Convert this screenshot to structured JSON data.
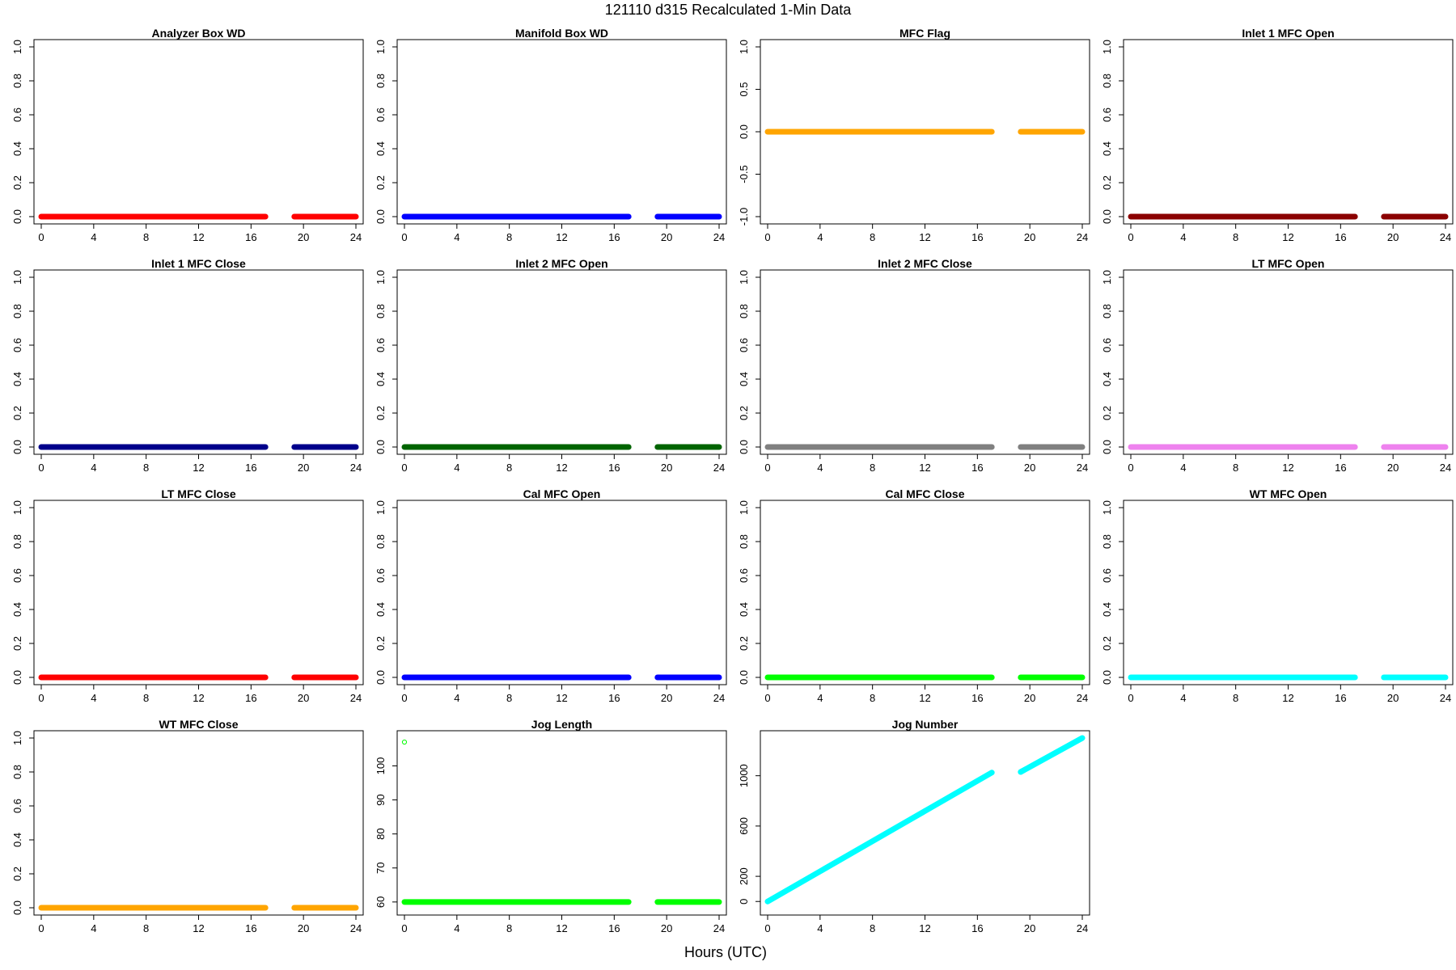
{
  "figure": {
    "title": "121110   d315   Recalculated 1-Min Data",
    "xlabel": "Hours (UTC)"
  },
  "chart_data": [
    {
      "type": "line",
      "title": "Analyzer Box WD",
      "color": "#FF0000",
      "xlim": [
        0,
        24
      ],
      "ylim": [
        0,
        1
      ],
      "xticks": [
        0,
        4,
        8,
        12,
        16,
        20,
        24
      ],
      "yticks": [
        0,
        0.2,
        0.4,
        0.6,
        0.8,
        1
      ],
      "ytick_labels": [
        "0.0",
        "0.2",
        "0.4",
        "0.6",
        "0.8",
        "1.0"
      ],
      "segments": [
        {
          "x": [
            0,
            17.1
          ],
          "y": [
            0,
            0
          ]
        },
        {
          "x": [
            19.3,
            24
          ],
          "y": [
            0,
            0
          ]
        }
      ]
    },
    {
      "type": "line",
      "title": "Manifold Box WD",
      "color": "#0000FF",
      "xlim": [
        0,
        24
      ],
      "ylim": [
        0,
        1
      ],
      "xticks": [
        0,
        4,
        8,
        12,
        16,
        20,
        24
      ],
      "yticks": [
        0,
        0.2,
        0.4,
        0.6,
        0.8,
        1
      ],
      "ytick_labels": [
        "0.0",
        "0.2",
        "0.4",
        "0.6",
        "0.8",
        "1.0"
      ],
      "segments": [
        {
          "x": [
            0,
            17.1
          ],
          "y": [
            0,
            0
          ]
        },
        {
          "x": [
            19.3,
            24
          ],
          "y": [
            0,
            0
          ]
        }
      ]
    },
    {
      "type": "line",
      "title": "MFC Flag",
      "color": "#FFA500",
      "xlim": [
        0,
        24
      ],
      "ylim": [
        -1,
        1
      ],
      "xticks": [
        0,
        4,
        8,
        12,
        16,
        20,
        24
      ],
      "yticks": [
        -1,
        -0.5,
        0,
        0.5,
        1
      ],
      "ytick_labels": [
        "-1.0",
        "-0.5",
        "0.0",
        "0.5",
        "1.0"
      ],
      "segments": [
        {
          "x": [
            0,
            17.1
          ],
          "y": [
            0,
            0
          ]
        },
        {
          "x": [
            19.3,
            24
          ],
          "y": [
            0,
            0
          ]
        }
      ]
    },
    {
      "type": "line",
      "title": "Inlet 1 MFC Open",
      "color": "#8B0000",
      "xlim": [
        0,
        24
      ],
      "ylim": [
        0,
        1
      ],
      "xticks": [
        0,
        4,
        8,
        12,
        16,
        20,
        24
      ],
      "yticks": [
        0,
        0.2,
        0.4,
        0.6,
        0.8,
        1
      ],
      "ytick_labels": [
        "0.0",
        "0.2",
        "0.4",
        "0.6",
        "0.8",
        "1.0"
      ],
      "segments": [
        {
          "x": [
            0,
            17.1
          ],
          "y": [
            0,
            0
          ]
        },
        {
          "x": [
            19.3,
            24
          ],
          "y": [
            0,
            0
          ]
        }
      ]
    },
    {
      "type": "line",
      "title": "Inlet 1 MFC Close",
      "color": "#00008B",
      "xlim": [
        0,
        24
      ],
      "ylim": [
        0,
        1
      ],
      "xticks": [
        0,
        4,
        8,
        12,
        16,
        20,
        24
      ],
      "yticks": [
        0,
        0.2,
        0.4,
        0.6,
        0.8,
        1
      ],
      "ytick_labels": [
        "0.0",
        "0.2",
        "0.4",
        "0.6",
        "0.8",
        "1.0"
      ],
      "segments": [
        {
          "x": [
            0,
            17.1
          ],
          "y": [
            0,
            0
          ]
        },
        {
          "x": [
            19.3,
            24
          ],
          "y": [
            0,
            0
          ]
        }
      ]
    },
    {
      "type": "line",
      "title": "Inlet 2 MFC Open",
      "color": "#006400",
      "xlim": [
        0,
        24
      ],
      "ylim": [
        0,
        1
      ],
      "xticks": [
        0,
        4,
        8,
        12,
        16,
        20,
        24
      ],
      "yticks": [
        0,
        0.2,
        0.4,
        0.6,
        0.8,
        1
      ],
      "ytick_labels": [
        "0.0",
        "0.2",
        "0.4",
        "0.6",
        "0.8",
        "1.0"
      ],
      "segments": [
        {
          "x": [
            0,
            17.1
          ],
          "y": [
            0,
            0
          ]
        },
        {
          "x": [
            19.3,
            24
          ],
          "y": [
            0,
            0
          ]
        }
      ]
    },
    {
      "type": "line",
      "title": "Inlet 2 MFC Close",
      "color": "#808080",
      "xlim": [
        0,
        24
      ],
      "ylim": [
        0,
        1
      ],
      "xticks": [
        0,
        4,
        8,
        12,
        16,
        20,
        24
      ],
      "yticks": [
        0,
        0.2,
        0.4,
        0.6,
        0.8,
        1
      ],
      "ytick_labels": [
        "0.0",
        "0.2",
        "0.4",
        "0.6",
        "0.8",
        "1.0"
      ],
      "segments": [
        {
          "x": [
            0,
            17.1
          ],
          "y": [
            0,
            0
          ]
        },
        {
          "x": [
            19.3,
            24
          ],
          "y": [
            0,
            0
          ]
        }
      ]
    },
    {
      "type": "line",
      "title": "LT MFC Open",
      "color": "#EE82EE",
      "xlim": [
        0,
        24
      ],
      "ylim": [
        0,
        1
      ],
      "xticks": [
        0,
        4,
        8,
        12,
        16,
        20,
        24
      ],
      "yticks": [
        0,
        0.2,
        0.4,
        0.6,
        0.8,
        1
      ],
      "ytick_labels": [
        "0.0",
        "0.2",
        "0.4",
        "0.6",
        "0.8",
        "1.0"
      ],
      "segments": [
        {
          "x": [
            0,
            17.1
          ],
          "y": [
            0,
            0
          ]
        },
        {
          "x": [
            19.3,
            24
          ],
          "y": [
            0,
            0
          ]
        }
      ]
    },
    {
      "type": "line",
      "title": "LT MFC Close",
      "color": "#FF0000",
      "xlim": [
        0,
        24
      ],
      "ylim": [
        0,
        1
      ],
      "xticks": [
        0,
        4,
        8,
        12,
        16,
        20,
        24
      ],
      "yticks": [
        0,
        0.2,
        0.4,
        0.6,
        0.8,
        1
      ],
      "ytick_labels": [
        "0.0",
        "0.2",
        "0.4",
        "0.6",
        "0.8",
        "1.0"
      ],
      "segments": [
        {
          "x": [
            0,
            17.1
          ],
          "y": [
            0,
            0
          ]
        },
        {
          "x": [
            19.3,
            24
          ],
          "y": [
            0,
            0
          ]
        }
      ]
    },
    {
      "type": "line",
      "title": "Cal MFC Open",
      "color": "#0000FF",
      "xlim": [
        0,
        24
      ],
      "ylim": [
        0,
        1
      ],
      "xticks": [
        0,
        4,
        8,
        12,
        16,
        20,
        24
      ],
      "yticks": [
        0,
        0.2,
        0.4,
        0.6,
        0.8,
        1
      ],
      "ytick_labels": [
        "0.0",
        "0.2",
        "0.4",
        "0.6",
        "0.8",
        "1.0"
      ],
      "segments": [
        {
          "x": [
            0,
            17.1
          ],
          "y": [
            0,
            0
          ]
        },
        {
          "x": [
            19.3,
            24
          ],
          "y": [
            0,
            0
          ]
        }
      ]
    },
    {
      "type": "line",
      "title": "Cal MFC Close",
      "color": "#00FF00",
      "xlim": [
        0,
        24
      ],
      "ylim": [
        0,
        1
      ],
      "xticks": [
        0,
        4,
        8,
        12,
        16,
        20,
        24
      ],
      "yticks": [
        0,
        0.2,
        0.4,
        0.6,
        0.8,
        1
      ],
      "ytick_labels": [
        "0.0",
        "0.2",
        "0.4",
        "0.6",
        "0.8",
        "1.0"
      ],
      "segments": [
        {
          "x": [
            0,
            17.1
          ],
          "y": [
            0,
            0
          ]
        },
        {
          "x": [
            19.3,
            24
          ],
          "y": [
            0,
            0
          ]
        }
      ]
    },
    {
      "type": "line",
      "title": "WT MFC Open",
      "color": "#00FFFF",
      "xlim": [
        0,
        24
      ],
      "ylim": [
        0,
        1
      ],
      "xticks": [
        0,
        4,
        8,
        12,
        16,
        20,
        24
      ],
      "yticks": [
        0,
        0.2,
        0.4,
        0.6,
        0.8,
        1
      ],
      "ytick_labels": [
        "0.0",
        "0.2",
        "0.4",
        "0.6",
        "0.8",
        "1.0"
      ],
      "segments": [
        {
          "x": [
            0,
            17.1
          ],
          "y": [
            0,
            0
          ]
        },
        {
          "x": [
            19.3,
            24
          ],
          "y": [
            0,
            0
          ]
        }
      ]
    },
    {
      "type": "line",
      "title": "WT MFC Close",
      "color": "#FFA500",
      "xlim": [
        0,
        24
      ],
      "ylim": [
        0,
        1
      ],
      "xticks": [
        0,
        4,
        8,
        12,
        16,
        20,
        24
      ],
      "yticks": [
        0,
        0.2,
        0.4,
        0.6,
        0.8,
        1
      ],
      "ytick_labels": [
        "0.0",
        "0.2",
        "0.4",
        "0.6",
        "0.8",
        "1.0"
      ],
      "segments": [
        {
          "x": [
            0,
            17.1
          ],
          "y": [
            0,
            0
          ]
        },
        {
          "x": [
            19.3,
            24
          ],
          "y": [
            0,
            0
          ]
        }
      ]
    },
    {
      "type": "line",
      "title": "Jog Length",
      "color": "#00FF00",
      "xlim": [
        0,
        24
      ],
      "ylim": [
        58.3,
        108.2
      ],
      "xticks": [
        0,
        4,
        8,
        12,
        16,
        20,
        24
      ],
      "yticks": [
        60,
        70,
        80,
        90,
        100
      ],
      "ytick_labels": [
        "60",
        "70",
        "80",
        "90",
        "100"
      ],
      "segments": [
        {
          "x": [
            0,
            17.1
          ],
          "y": [
            60,
            60
          ]
        },
        {
          "x": [
            19.3,
            24
          ],
          "y": [
            60,
            60
          ]
        }
      ],
      "points": [
        {
          "x": 0,
          "y": 107
        }
      ]
    },
    {
      "type": "line",
      "title": "Jog Number",
      "color": "#00FFFF",
      "xlim": [
        0,
        24
      ],
      "ylim": [
        -50,
        1300
      ],
      "xticks": [
        0,
        4,
        8,
        12,
        16,
        20,
        24
      ],
      "yticks": [
        0,
        200,
        600,
        1000
      ],
      "ytick_labels": [
        "0",
        "200",
        "600",
        "1000"
      ],
      "segments": [
        {
          "x": [
            0,
            17.1
          ],
          "y": [
            0,
            1025
          ]
        },
        {
          "x": [
            19.3,
            24
          ],
          "y": [
            1030,
            1300
          ]
        }
      ]
    }
  ]
}
